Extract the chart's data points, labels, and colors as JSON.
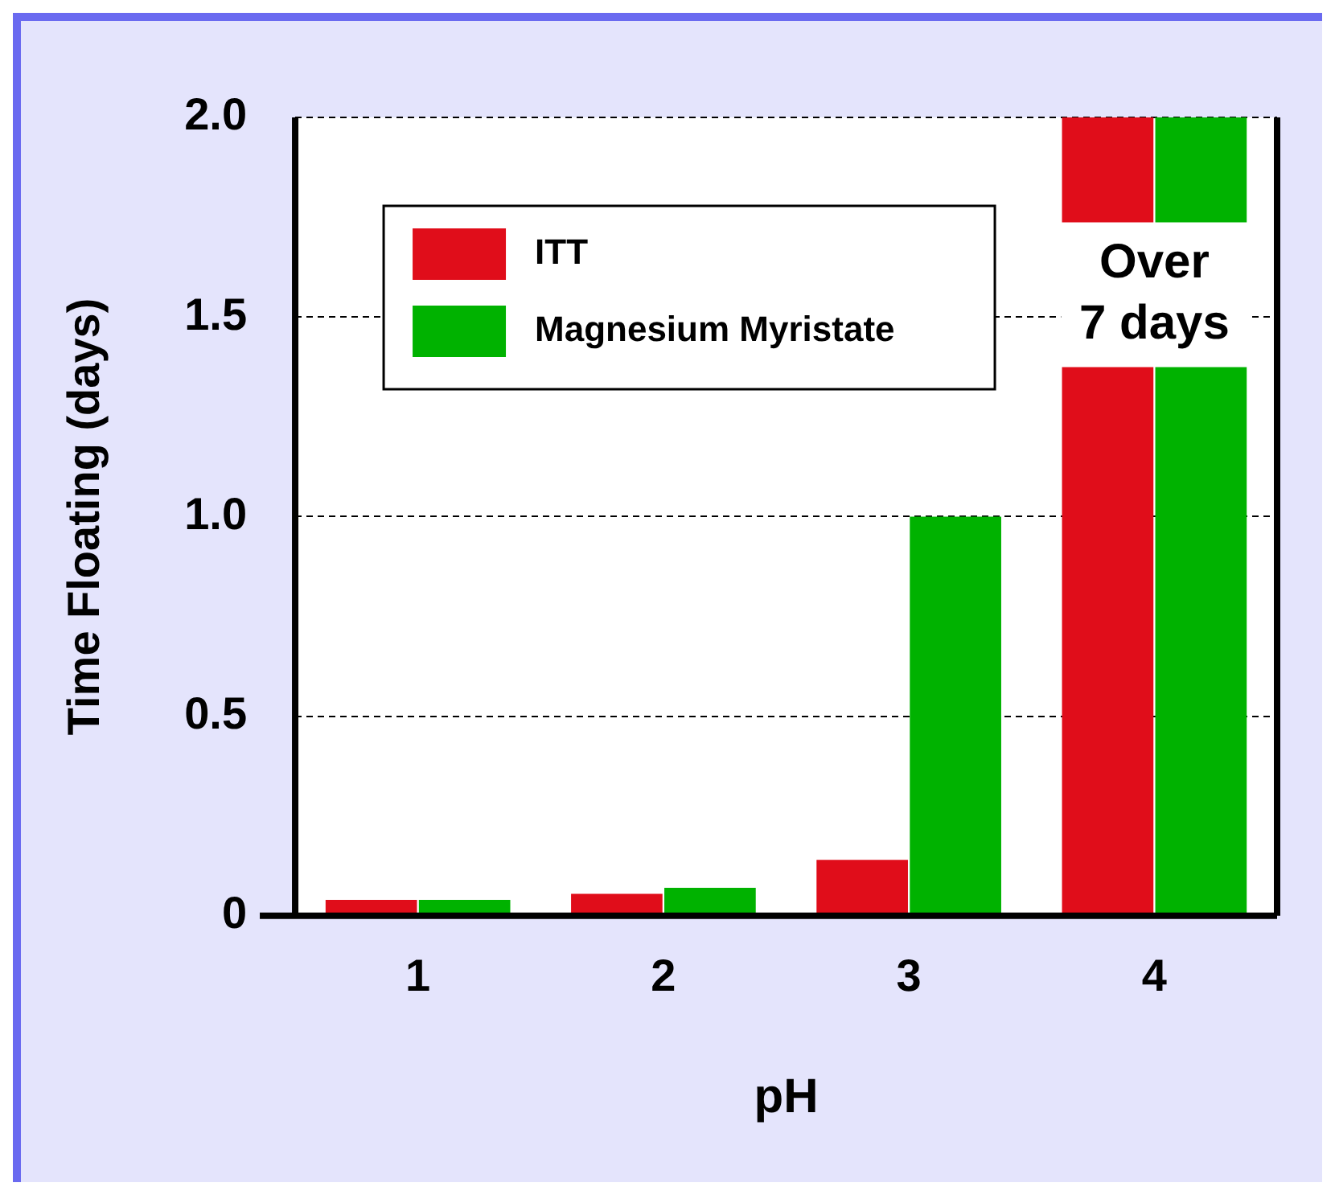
{
  "chart_data": {
    "type": "bar",
    "xlabel": "pH",
    "ylabel": "Time Floating (days)",
    "categories": [
      "1",
      "2",
      "3",
      "4"
    ],
    "series": [
      {
        "name": "ITT",
        "color": "#e00d1a",
        "values": [
          0.04,
          0.055,
          0.14,
          2.0
        ]
      },
      {
        "name": "Magnesium Myristate",
        "color": "#00b200",
        "values": [
          0.04,
          0.07,
          1.0,
          2.0
        ]
      }
    ],
    "ylim": [
      0,
      2.0
    ],
    "yticks": [
      0,
      0.5,
      {
        "value": 1.0,
        "label": "1.0"
      },
      {
        "value": 1.5,
        "label": "1.5"
      },
      {
        "value": 2.0,
        "label": "2.0"
      }
    ],
    "grid": "y",
    "line_style": "dashed",
    "legend": "top left",
    "annotations": [
      {
        "text": "Over 7 days",
        "x": "4",
        "y": 1.56
      }
    ]
  }
}
